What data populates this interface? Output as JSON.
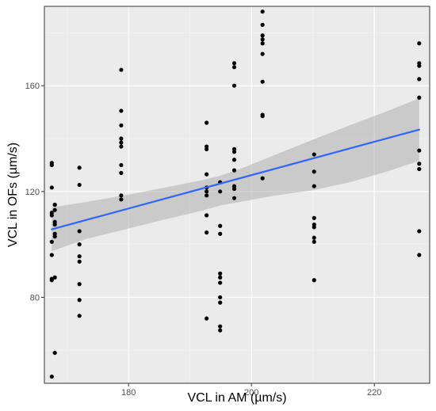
{
  "chart_data": {
    "type": "scatter",
    "title": "",
    "xlabel": "VCL in AM (µm/s)",
    "ylabel": "VCL in OFs (µm/s)",
    "xlim": [
      166.3,
      229.0
    ],
    "ylim": [
      47.5,
      190.0
    ],
    "x_ticks": [
      180,
      200,
      220
    ],
    "y_ticks": [
      80,
      120,
      160
    ],
    "x_minor_ticks": [
      170,
      190,
      210
    ],
    "y_minor_ticks": [
      60,
      100,
      140,
      180
    ],
    "grid": true,
    "background": "#ebebeb",
    "points": [
      {
        "x": 167.5,
        "y": 130.8
      },
      {
        "x": 167.5,
        "y": 130.0
      },
      {
        "x": 167.5,
        "y": 121.5
      },
      {
        "x": 167.5,
        "y": 112.0
      },
      {
        "x": 167.5,
        "y": 111.0
      },
      {
        "x": 167.5,
        "y": 101.0
      },
      {
        "x": 167.5,
        "y": 96.0
      },
      {
        "x": 167.5,
        "y": 87.0
      },
      {
        "x": 167.5,
        "y": 86.5
      },
      {
        "x": 167.5,
        "y": 50.0
      },
      {
        "x": 168.0,
        "y": 115.0
      },
      {
        "x": 168.0,
        "y": 113.0
      },
      {
        "x": 168.0,
        "y": 108.5
      },
      {
        "x": 168.0,
        "y": 107.5
      },
      {
        "x": 168.0,
        "y": 104.0
      },
      {
        "x": 168.0,
        "y": 103.0
      },
      {
        "x": 168.0,
        "y": 87.5
      },
      {
        "x": 168.0,
        "y": 59.0
      },
      {
        "x": 168.0,
        "y": 115.0
      },
      {
        "x": 172.0,
        "y": 129.0
      },
      {
        "x": 172.0,
        "y": 122.5
      },
      {
        "x": 172.0,
        "y": 105.0
      },
      {
        "x": 172.0,
        "y": 100.0
      },
      {
        "x": 172.0,
        "y": 95.5
      },
      {
        "x": 172.0,
        "y": 93.5
      },
      {
        "x": 172.0,
        "y": 85.0
      },
      {
        "x": 172.0,
        "y": 79.0
      },
      {
        "x": 172.0,
        "y": 73.0
      },
      {
        "x": 178.8,
        "y": 166.0
      },
      {
        "x": 178.8,
        "y": 150.5
      },
      {
        "x": 178.8,
        "y": 145.0
      },
      {
        "x": 178.8,
        "y": 140.0
      },
      {
        "x": 178.8,
        "y": 138.5
      },
      {
        "x": 178.8,
        "y": 137.0
      },
      {
        "x": 178.8,
        "y": 130.0
      },
      {
        "x": 178.8,
        "y": 127.0
      },
      {
        "x": 178.8,
        "y": 118.5
      },
      {
        "x": 178.8,
        "y": 117.0
      },
      {
        "x": 192.7,
        "y": 146.0
      },
      {
        "x": 192.7,
        "y": 137.0
      },
      {
        "x": 192.7,
        "y": 136.0
      },
      {
        "x": 192.7,
        "y": 126.5
      },
      {
        "x": 192.7,
        "y": 121.5
      },
      {
        "x": 192.7,
        "y": 120.0
      },
      {
        "x": 192.7,
        "y": 118.5
      },
      {
        "x": 192.7,
        "y": 111.0
      },
      {
        "x": 192.7,
        "y": 104.5
      },
      {
        "x": 192.7,
        "y": 72.0
      },
      {
        "x": 194.9,
        "y": 123.5
      },
      {
        "x": 194.9,
        "y": 120.0
      },
      {
        "x": 194.9,
        "y": 107.0
      },
      {
        "x": 194.9,
        "y": 104.0
      },
      {
        "x": 194.9,
        "y": 89.0
      },
      {
        "x": 194.9,
        "y": 87.5
      },
      {
        "x": 194.9,
        "y": 85.5
      },
      {
        "x": 194.9,
        "y": 80.0
      },
      {
        "x": 194.9,
        "y": 78.0
      },
      {
        "x": 194.9,
        "y": 69.0
      },
      {
        "x": 194.9,
        "y": 67.5
      },
      {
        "x": 197.2,
        "y": 168.5
      },
      {
        "x": 197.2,
        "y": 167.0
      },
      {
        "x": 197.2,
        "y": 160.0
      },
      {
        "x": 197.2,
        "y": 136.0
      },
      {
        "x": 197.2,
        "y": 135.0
      },
      {
        "x": 197.2,
        "y": 132.0
      },
      {
        "x": 197.2,
        "y": 128.0
      },
      {
        "x": 197.2,
        "y": 122.0
      },
      {
        "x": 197.2,
        "y": 121.0
      },
      {
        "x": 197.2,
        "y": 117.5
      },
      {
        "x": 201.8,
        "y": 188.0
      },
      {
        "x": 201.8,
        "y": 183.0
      },
      {
        "x": 201.8,
        "y": 179.0
      },
      {
        "x": 201.8,
        "y": 177.5
      },
      {
        "x": 201.8,
        "y": 176.0
      },
      {
        "x": 201.8,
        "y": 172.0
      },
      {
        "x": 201.8,
        "y": 161.5
      },
      {
        "x": 201.8,
        "y": 149.0
      },
      {
        "x": 201.8,
        "y": 148.5
      },
      {
        "x": 201.8,
        "y": 125.0
      },
      {
        "x": 210.2,
        "y": 134.0
      },
      {
        "x": 210.2,
        "y": 127.5
      },
      {
        "x": 210.2,
        "y": 122.0
      },
      {
        "x": 210.2,
        "y": 110.0
      },
      {
        "x": 210.2,
        "y": 107.5
      },
      {
        "x": 210.2,
        "y": 106.5
      },
      {
        "x": 210.2,
        "y": 102.5
      },
      {
        "x": 210.2,
        "y": 101.0
      },
      {
        "x": 210.2,
        "y": 86.5
      },
      {
        "x": 227.3,
        "y": 176.0
      },
      {
        "x": 227.3,
        "y": 168.5
      },
      {
        "x": 227.3,
        "y": 167.5
      },
      {
        "x": 227.3,
        "y": 162.5
      },
      {
        "x": 227.3,
        "y": 155.5
      },
      {
        "x": 227.3,
        "y": 135.5
      },
      {
        "x": 227.3,
        "y": 130.5
      },
      {
        "x": 227.3,
        "y": 128.5
      },
      {
        "x": 227.3,
        "y": 105.0
      },
      {
        "x": 227.3,
        "y": 96.0
      }
    ],
    "fit_line": {
      "x": [
        167.5,
        227.3
      ],
      "y": [
        105.7,
        143.4
      ],
      "color": "#3366ff"
    },
    "confidence_band": {
      "x": [
        167.5,
        173.0,
        180.0,
        186.0,
        192.0,
        195.0,
        198.0,
        204.0,
        210.0,
        216.0,
        222.0,
        227.3
      ],
      "upper": [
        114.0,
        116.0,
        118.8,
        121.5,
        124.3,
        126.0,
        128.4,
        134.0,
        139.6,
        145.0,
        150.3,
        155.2
      ],
      "lower": [
        97.4,
        102.0,
        106.0,
        109.5,
        112.8,
        114.8,
        116.0,
        118.5,
        120.5,
        123.5,
        127.5,
        131.6
      ],
      "color": "#999999"
    },
    "point_color": "#000000"
  }
}
